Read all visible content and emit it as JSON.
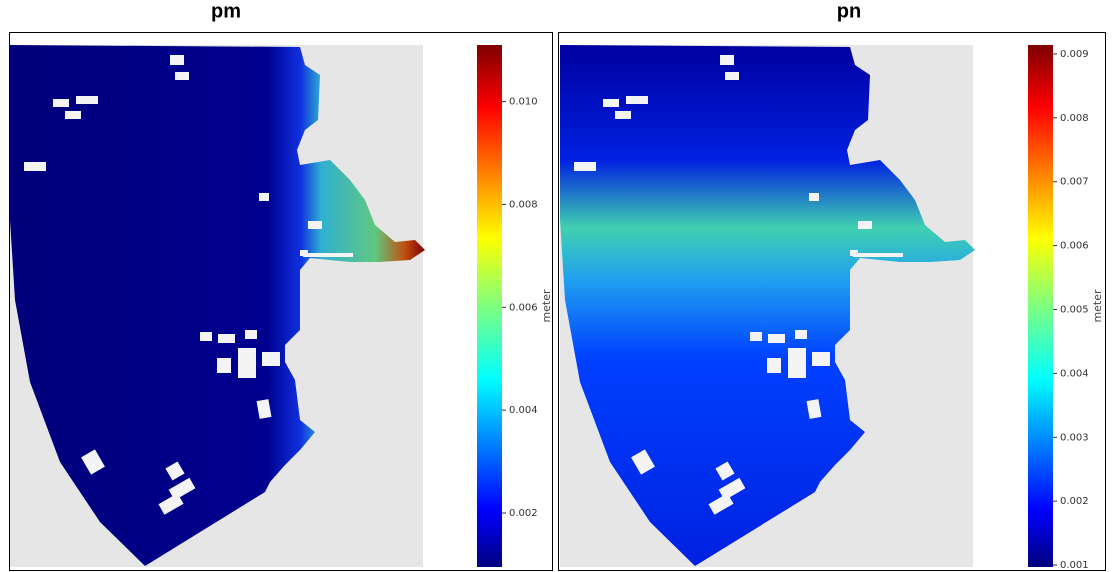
{
  "chart_data": [
    {
      "type": "colormap",
      "title": "pm",
      "colorbar_label": "meter",
      "colormap": "jet",
      "clim": [
        0.00095,
        0.0111
      ],
      "cticks": [
        0.002,
        0.004,
        0.006,
        0.008,
        {
          "value": 0.01,
          "label": "0.010"
        }
      ]
    },
    {
      "type": "colormap",
      "title": "pn",
      "colorbar_label": "meter",
      "colormap": "jet",
      "clim": [
        0.00097,
        0.00914
      ],
      "cticks": [
        0.001,
        0.002,
        0.003,
        0.004,
        0.005,
        0.006,
        0.007,
        0.008,
        0.009
      ]
    }
  ]
}
